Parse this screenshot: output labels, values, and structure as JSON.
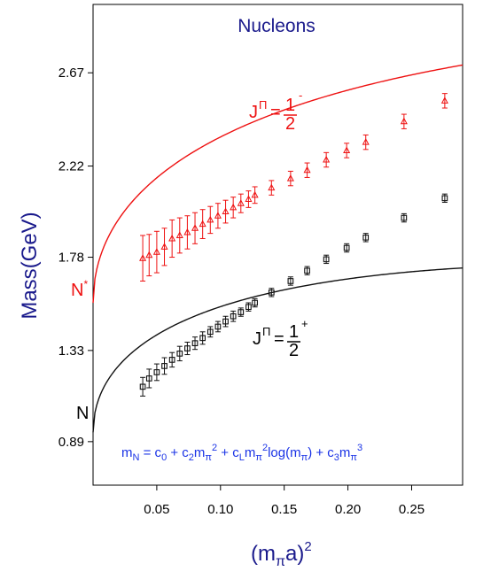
{
  "chart_data": {
    "type": "scatter",
    "title": "Nucleons",
    "xlabel": {
      "main": "(m",
      "sub": "π",
      "mid": "a)",
      "sup": "2"
    },
    "ylabel": "Mass(GeV)",
    "xlim": [
      0.0,
      0.29
    ],
    "ylim": [
      0.68,
      3.0
    ],
    "x_ticks": [
      {
        "v": 0.05,
        "label": "0.05"
      },
      {
        "v": 0.1,
        "label": "0.10"
      },
      {
        "v": 0.15,
        "label": "0.15"
      },
      {
        "v": 0.2,
        "label": "0.20"
      },
      {
        "v": 0.25,
        "label": "0.25"
      }
    ],
    "y_ticks": [
      {
        "v": 0.89,
        "label": "0.89"
      },
      {
        "v": 1.33,
        "label": "1.33"
      },
      {
        "v": 1.78,
        "label": "1.78"
      },
      {
        "v": 2.22,
        "label": "2.22"
      },
      {
        "v": 2.67,
        "label": "2.67"
      }
    ],
    "series": [
      {
        "name": "N*",
        "color": "#ee1111",
        "marker": "triangle",
        "fit": [
          1.56,
          3.1,
          1.8
        ],
        "points": [
          {
            "x": 0.039,
            "y": 1.775,
            "err": 0.11
          },
          {
            "x": 0.044,
            "y": 1.79,
            "err": 0.1
          },
          {
            "x": 0.05,
            "y": 1.805,
            "err": 0.1
          },
          {
            "x": 0.056,
            "y": 1.83,
            "err": 0.09
          },
          {
            "x": 0.062,
            "y": 1.87,
            "err": 0.09
          },
          {
            "x": 0.068,
            "y": 1.885,
            "err": 0.085
          },
          {
            "x": 0.074,
            "y": 1.9,
            "err": 0.08
          },
          {
            "x": 0.08,
            "y": 1.92,
            "err": 0.075
          },
          {
            "x": 0.086,
            "y": 1.94,
            "err": 0.07
          },
          {
            "x": 0.092,
            "y": 1.96,
            "err": 0.065
          },
          {
            "x": 0.098,
            "y": 1.98,
            "err": 0.06
          },
          {
            "x": 0.104,
            "y": 2.0,
            "err": 0.055
          },
          {
            "x": 0.11,
            "y": 2.02,
            "err": 0.05
          },
          {
            "x": 0.116,
            "y": 2.04,
            "err": 0.045
          },
          {
            "x": 0.122,
            "y": 2.06,
            "err": 0.04
          },
          {
            "x": 0.127,
            "y": 2.08,
            "err": 0.04
          },
          {
            "x": 0.14,
            "y": 2.115,
            "err": 0.035
          },
          {
            "x": 0.155,
            "y": 2.16,
            "err": 0.035
          },
          {
            "x": 0.168,
            "y": 2.2,
            "err": 0.035
          },
          {
            "x": 0.183,
            "y": 2.25,
            "err": 0.035
          },
          {
            "x": 0.199,
            "y": 2.295,
            "err": 0.035
          },
          {
            "x": 0.214,
            "y": 2.335,
            "err": 0.035
          },
          {
            "x": 0.244,
            "y": 2.435,
            "err": 0.035
          },
          {
            "x": 0.276,
            "y": 2.535,
            "err": 0.035
          }
        ]
      },
      {
        "name": "N",
        "color": "#111111",
        "marker": "square",
        "fit": [
          0.935,
          2.55,
          2.0
        ],
        "points": [
          {
            "x": 0.039,
            "y": 1.155,
            "err": 0.045
          },
          {
            "x": 0.044,
            "y": 1.195,
            "err": 0.045
          },
          {
            "x": 0.05,
            "y": 1.225,
            "err": 0.04
          },
          {
            "x": 0.056,
            "y": 1.255,
            "err": 0.04
          },
          {
            "x": 0.062,
            "y": 1.285,
            "err": 0.035
          },
          {
            "x": 0.068,
            "y": 1.315,
            "err": 0.035
          },
          {
            "x": 0.074,
            "y": 1.34,
            "err": 0.03
          },
          {
            "x": 0.08,
            "y": 1.365,
            "err": 0.03
          },
          {
            "x": 0.086,
            "y": 1.39,
            "err": 0.03
          },
          {
            "x": 0.092,
            "y": 1.42,
            "err": 0.025
          },
          {
            "x": 0.098,
            "y": 1.445,
            "err": 0.025
          },
          {
            "x": 0.104,
            "y": 1.47,
            "err": 0.025
          },
          {
            "x": 0.11,
            "y": 1.495,
            "err": 0.025
          },
          {
            "x": 0.116,
            "y": 1.515,
            "err": 0.02
          },
          {
            "x": 0.122,
            "y": 1.54,
            "err": 0.02
          },
          {
            "x": 0.127,
            "y": 1.56,
            "err": 0.02
          },
          {
            "x": 0.14,
            "y": 1.61,
            "err": 0.02
          },
          {
            "x": 0.155,
            "y": 1.665,
            "err": 0.02
          },
          {
            "x": 0.168,
            "y": 1.715,
            "err": 0.02
          },
          {
            "x": 0.183,
            "y": 1.77,
            "err": 0.02
          },
          {
            "x": 0.199,
            "y": 1.825,
            "err": 0.02
          },
          {
            "x": 0.214,
            "y": 1.875,
            "err": 0.02
          },
          {
            "x": 0.244,
            "y": 1.97,
            "err": 0.02
          },
          {
            "x": 0.276,
            "y": 2.065,
            "err": 0.02
          }
        ]
      }
    ],
    "annotations": {
      "nstar_label": "N",
      "nstar_sup": "*",
      "n_label": "N",
      "jp_label": "J",
      "jp_sup": "Π",
      "eq": "=",
      "frac_num": "1",
      "frac_den": "2",
      "minus_sign": "-",
      "plus_sign": "+",
      "formula": [
        {
          "t": "m"
        },
        {
          "t": "N",
          "s": "sub"
        },
        {
          "t": " = c"
        },
        {
          "t": "0",
          "s": "sub"
        },
        {
          "t": " + c"
        },
        {
          "t": "2",
          "s": "sub"
        },
        {
          "t": "m"
        },
        {
          "t": "π",
          "s": "sub"
        },
        {
          "t": "2",
          "s": "sup"
        },
        {
          "t": " + c"
        },
        {
          "t": "L",
          "s": "sub"
        },
        {
          "t": "m"
        },
        {
          "t": "π",
          "s": "sub"
        },
        {
          "t": "2",
          "s": "sup"
        },
        {
          "t": "log(m"
        },
        {
          "t": "π",
          "s": "sub"
        },
        {
          "t": ") + c"
        },
        {
          "t": "3",
          "s": "sub"
        },
        {
          "t": "m"
        },
        {
          "t": "π",
          "s": "sub"
        },
        {
          "t": "3",
          "s": "sup"
        }
      ]
    }
  }
}
